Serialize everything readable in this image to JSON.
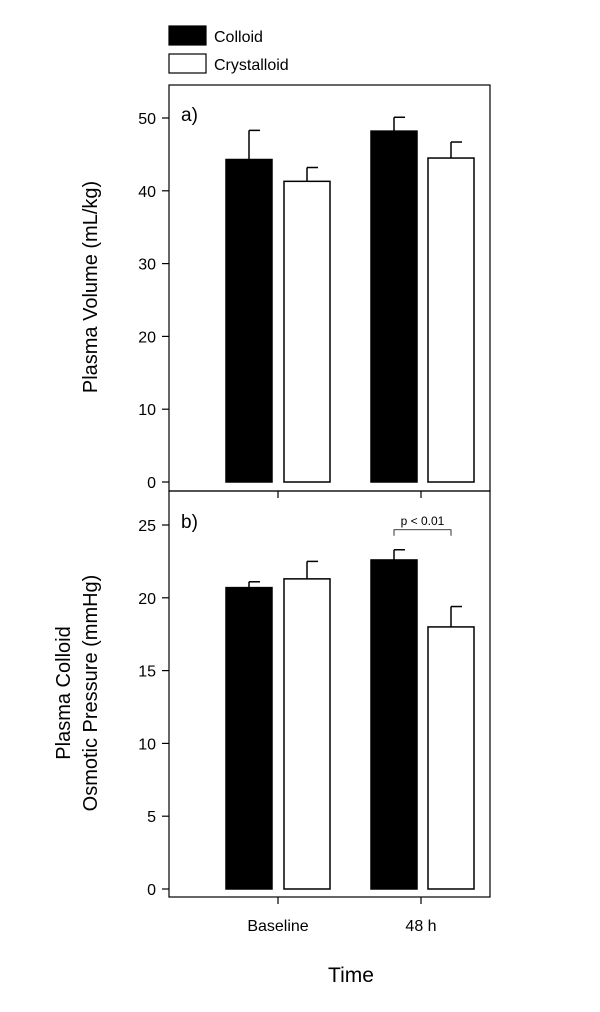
{
  "legend": {
    "items": [
      {
        "label": "Colloid",
        "color": "#000000"
      },
      {
        "label": "Crystalloid",
        "color": "#ffffff"
      }
    ]
  },
  "xaxis": {
    "title": "Time",
    "categories": [
      "Baseline",
      "48 h"
    ]
  },
  "chart_data": [
    {
      "type": "bar",
      "panel_label": "a)",
      "ylabel": [
        "Plasma Volume (mL/kg)"
      ],
      "ylim": [
        0,
        55
      ],
      "yticks": [
        0,
        10,
        20,
        30,
        40,
        50
      ],
      "categories": [
        "Baseline",
        "48 h"
      ],
      "series": [
        {
          "name": "Colloid",
          "color": "#000000",
          "values": [
            44.3,
            48.2
          ],
          "errors": [
            4.0,
            1.9
          ]
        },
        {
          "name": "Crystalloid",
          "color": "#ffffff",
          "values": [
            41.3,
            44.5
          ],
          "errors": [
            1.9,
            2.2
          ]
        }
      ],
      "annotations": [],
      "grid": false,
      "legend_position": "top-left"
    },
    {
      "type": "bar",
      "panel_label": "b)",
      "ylabel": [
        "Plasma Colloid",
        "Osmotic Pressure (mmHg)"
      ],
      "ylim": [
        0,
        27
      ],
      "yticks": [
        0,
        5,
        10,
        15,
        20,
        25
      ],
      "categories": [
        "Baseline",
        "48 h"
      ],
      "series": [
        {
          "name": "Colloid",
          "color": "#000000",
          "values": [
            20.7,
            22.6
          ],
          "errors": [
            0.4,
            0.7
          ]
        },
        {
          "name": "Crystalloid",
          "color": "#ffffff",
          "values": [
            21.3,
            18.0
          ],
          "errors": [
            1.2,
            1.4
          ]
        }
      ],
      "annotations": [
        {
          "text": "p < 0.01",
          "category": "48 h"
        }
      ],
      "grid": false,
      "legend_position": "top-left"
    }
  ]
}
